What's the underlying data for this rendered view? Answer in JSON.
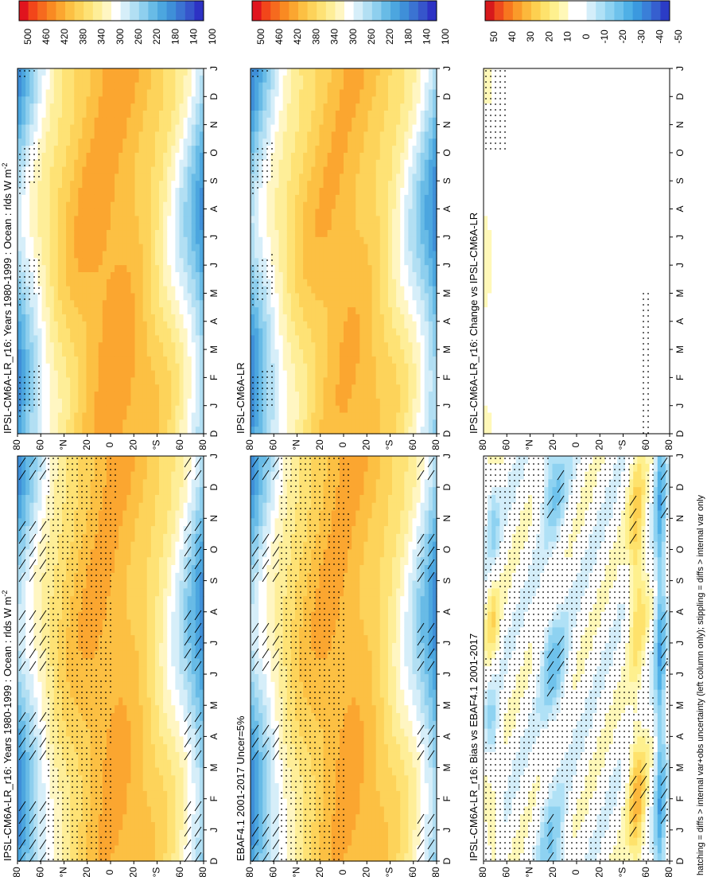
{
  "footer": "hatching = diffs > internal var+obs uncertainty (left column only); stippling = diffs > internal var only",
  "month_labels": [
    "D",
    "J",
    "F",
    "M",
    "A",
    "M",
    "J",
    "J",
    "A",
    "S",
    "O",
    "N",
    "D",
    "J"
  ],
  "lat_labels": [
    "80",
    "60",
    "°N",
    "20",
    "0",
    "20",
    "°S",
    "60",
    "80"
  ],
  "abs_palette": [
    "#e0141e",
    "#f2461a",
    "#f66a1e",
    "#f98a22",
    "#fba630",
    "#fcc043",
    "#fdd35a",
    "#fee275",
    "#feee98",
    "#fff6c2",
    "#ffffff",
    "#d6eef9",
    "#b2dff3",
    "#8ecfee",
    "#68bbe6",
    "#4ca6df",
    "#3f8fd8",
    "#3b73d2",
    "#3655cb",
    "#2d32c4"
  ],
  "diff_palette": [
    "#d7191c",
    "#ee4a1d",
    "#f7761f",
    "#fa9a2a",
    "#fcb83c",
    "#fdd050",
    "#fee26c",
    "#fef08e",
    "#fff8b8",
    "#ffffff",
    "#ffffff",
    "#d4eefa",
    "#b0e1f6",
    "#8ed2f1",
    "#6ec2ec",
    "#4fb0e6",
    "#3b99df",
    "#3a7fd8",
    "#365fcf",
    "#2b3cc6"
  ],
  "abs_tick_labels": [
    "500",
    "460",
    "420",
    "380",
    "340",
    "300",
    "260",
    "220",
    "180",
    "140",
    "100"
  ],
  "diff_tick_labels": [
    "50",
    "40",
    "30",
    "20",
    "10",
    "0",
    "-10",
    "-20",
    "-30",
    "-40",
    "-50"
  ],
  "chart_data": [
    {
      "id": "p1",
      "type": "heatmap",
      "title": "IPSL-CM6A-LR_r16: Years 1980-1999 : Ocean : rlds W m",
      "units_sup": "-2",
      "variable": "rlds",
      "units": "W m-2",
      "x": "month (D..J)",
      "y": "latitude (80N..80S)",
      "range": [
        100,
        500
      ],
      "step": 20,
      "hatching": true,
      "stippling": true
    },
    {
      "id": "p2",
      "type": "heatmap",
      "title": "IPSL-CM6A-LR_r16: Years 1980-1999 : Ocean : rlds W m",
      "units_sup": "-2",
      "variable": "rlds",
      "units": "W m-2",
      "x": "month (D..J)",
      "y": "latitude (80N..80S)",
      "range": [
        100,
        500
      ],
      "step": 20,
      "hatching": false,
      "stippling": true
    },
    {
      "id": "p3",
      "type": "heatmap",
      "title": "EBAF4.1 2001-2017 Uncer=5%",
      "units_sup": "",
      "variable": "rlds",
      "units": "W m-2",
      "x": "month (D..J)",
      "y": "latitude (80N..80S)",
      "range": [
        100,
        500
      ],
      "step": 20,
      "hatching": true,
      "stippling": true
    },
    {
      "id": "p4",
      "type": "heatmap",
      "title": "IPSL-CM6A-LR",
      "units_sup": "",
      "variable": "rlds",
      "units": "W m-2",
      "x": "month (D..J)",
      "y": "latitude (80N..80S)",
      "range": [
        100,
        500
      ],
      "step": 20,
      "hatching": false,
      "stippling": true
    },
    {
      "id": "p5",
      "type": "heatmap",
      "title": "IPSL-CM6A-LR_r16: Bias vs EBAF4.1 2001-2017",
      "units_sup": "",
      "variable": "rlds difference",
      "units": "W m-2",
      "x": "month (D..J)",
      "y": "latitude (80N..80S)",
      "range": [
        -50,
        50
      ],
      "step": 5,
      "hatching": true,
      "stippling": true
    },
    {
      "id": "p6",
      "type": "heatmap",
      "title": "IPSL-CM6A-LR_r16: Change vs IPSL-CM6A-LR",
      "units_sup": "",
      "variable": "rlds difference",
      "units": "W m-2",
      "x": "month (D..J)",
      "y": "latitude (80N..80S)",
      "range": [
        -50,
        50
      ],
      "step": 5,
      "hatching": false,
      "stippling": true
    }
  ]
}
